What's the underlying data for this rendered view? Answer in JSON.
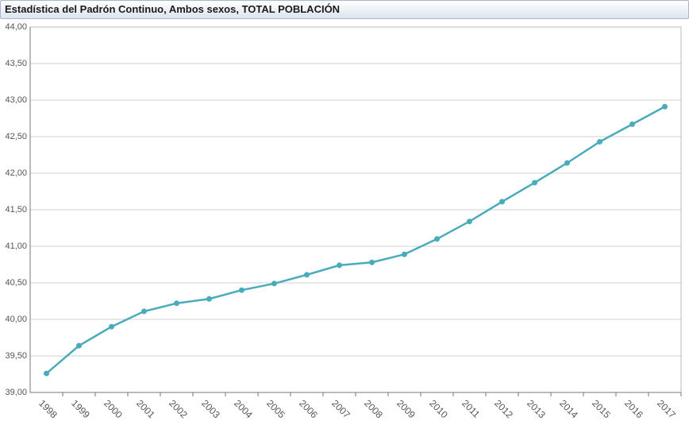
{
  "chart_data": {
    "type": "line",
    "title": "Estadística del Padrón Continuo, Ambos sexos, TOTAL POBLACIÓN",
    "categories": [
      "1998",
      "1999",
      "2000",
      "2001",
      "2002",
      "2003",
      "2004",
      "2005",
      "2006",
      "2007",
      "2008",
      "2009",
      "2010",
      "2011",
      "2012",
      "2013",
      "2014",
      "2015",
      "2016",
      "2017"
    ],
    "series": [
      {
        "name": "TOTAL POBLACIÓN",
        "color": "#4aacba",
        "values": [
          39.26,
          39.64,
          39.9,
          40.11,
          40.22,
          40.28,
          40.4,
          40.49,
          40.61,
          40.74,
          40.78,
          40.89,
          41.1,
          41.34,
          41.61,
          41.87,
          42.14,
          42.43,
          42.67,
          42.91
        ]
      }
    ],
    "ylim": [
      39,
      44
    ],
    "yticks": [
      {
        "value": 39,
        "label": "39,00"
      },
      {
        "value": 39.5,
        "label": "39,50"
      },
      {
        "value": 40,
        "label": "40,00"
      },
      {
        "value": 40.5,
        "label": "40,50"
      },
      {
        "value": 41,
        "label": "41,00"
      },
      {
        "value": 41.5,
        "label": "41,50"
      },
      {
        "value": 42,
        "label": "42,00"
      },
      {
        "value": 42.5,
        "label": "42,50"
      },
      {
        "value": 43,
        "label": "43,00"
      },
      {
        "value": 43.5,
        "label": "43,50"
      },
      {
        "value": 44,
        "label": "44,00"
      }
    ],
    "grid": true
  }
}
